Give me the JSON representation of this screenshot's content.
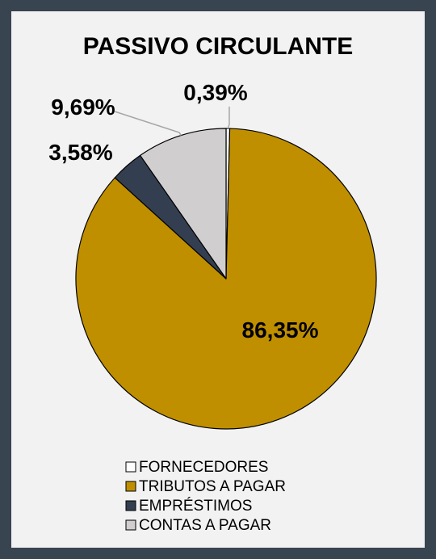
{
  "chart_data": {
    "type": "pie",
    "title": "PASSIVO CIRCULANTE",
    "categories": [
      "FORNECEDORES",
      "TRIBUTOS A PAGAR",
      "EMPRÉSTIMOS",
      "CONTAS A PAGAR"
    ],
    "values": [
      0.39,
      86.35,
      3.58,
      9.69
    ],
    "labels": [
      "0,39%",
      "86,35%",
      "3,58%",
      "9,69%"
    ],
    "colors": [
      "#ffffff",
      "#bf8f00",
      "#333f50",
      "#d0cece"
    ],
    "legend_position": "bottom",
    "start_angle": "12 o'clock, clockwise"
  }
}
